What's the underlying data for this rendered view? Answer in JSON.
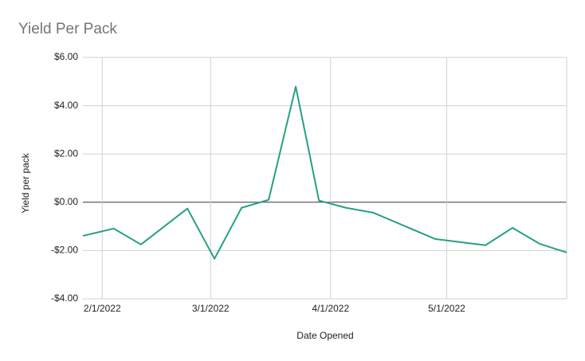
{
  "chart_data": {
    "type": "line",
    "title": "Yield Per Pack",
    "x_label": "Date Opened",
    "y_label": "Yield per pack",
    "x": [
      "1/27/2022",
      "2/4/2022",
      "2/11/2022",
      "2/23/2022",
      "3/2/2022",
      "3/9/2022",
      "3/16/2022",
      "3/23/2022",
      "3/29/2022",
      "4/5/2022",
      "4/12/2022",
      "4/28/2022",
      "5/11/2022",
      "5/18/2022",
      "5/25/2022",
      "6/1/2022"
    ],
    "series": [
      {
        "name": "Yield per pack",
        "color": "#26a085",
        "values": [
          -1.39,
          -1.09,
          -1.75,
          -0.26,
          -2.34,
          -0.23,
          0.1,
          4.79,
          0.07,
          -0.23,
          -0.43,
          -1.52,
          -1.78,
          -1.06,
          -1.72,
          -2.08
        ]
      }
    ],
    "xlim": [
      "1/27/2022",
      "6/1/2022"
    ],
    "xticks": [
      "2/1/2022",
      "3/1/2022",
      "4/1/2022",
      "5/1/2022"
    ],
    "ylim": [
      -4,
      6
    ],
    "yticks": [
      {
        "value": -4,
        "label": "-$4.00"
      },
      {
        "value": -2,
        "label": "-$2.00"
      },
      {
        "value": 0,
        "label": "$0.00"
      },
      {
        "value": 2,
        "label": "$2.00"
      },
      {
        "value": 4,
        "label": "$4.00"
      },
      {
        "value": 6,
        "label": "$6.00"
      }
    ],
    "grid": true
  }
}
